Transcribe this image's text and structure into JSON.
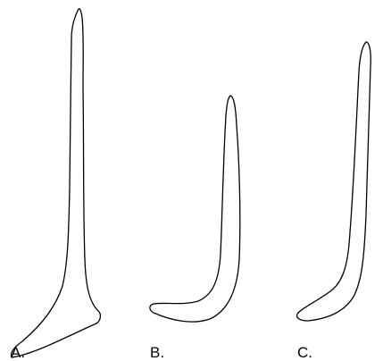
{
  "figures": [
    {
      "label": "A."
    },
    {
      "label": "B."
    },
    {
      "label": "C."
    }
  ]
}
